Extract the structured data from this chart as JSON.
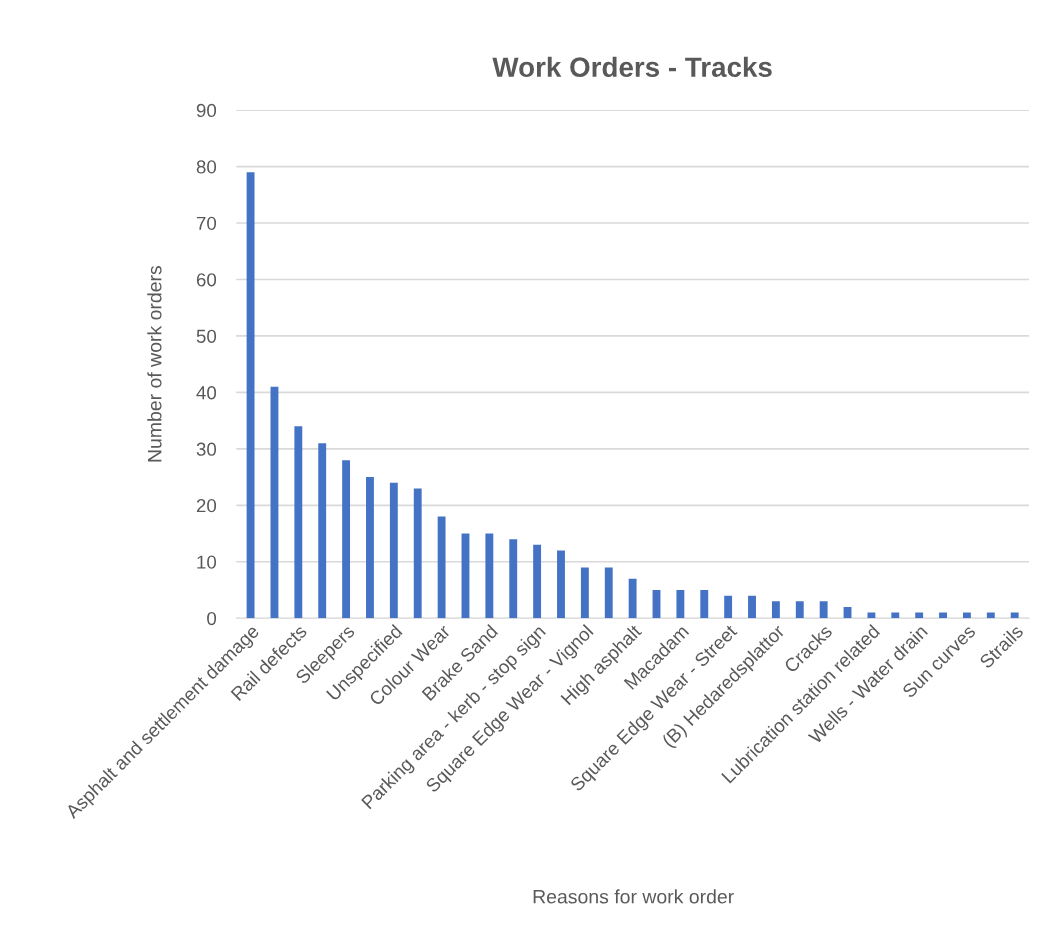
{
  "chart_data": {
    "type": "bar",
    "title": "Work Orders - Tracks",
    "xlabel": "Reasons for work order",
    "ylabel": "Number of work orders",
    "categories": [
      "Asphalt and settlement damage",
      null,
      "Rail defects",
      null,
      "Sleepers",
      null,
      "Unspecified",
      null,
      "Colour Wear",
      null,
      "Brake Sand",
      null,
      "Parking area - kerb - stop sign",
      null,
      "Square Edge Wear - Vignol",
      null,
      "High asphalt",
      null,
      "Macadam",
      null,
      "Square Edge Wear - Street",
      null,
      "(B) Hedaredsplattor",
      null,
      "Cracks",
      null,
      "Lubrication station related",
      null,
      "Wells - Water drain",
      null,
      "Sun curves",
      null,
      "Strails"
    ],
    "values": [
      79,
      41,
      34,
      31,
      28,
      25,
      24,
      23,
      18,
      15,
      15,
      14,
      13,
      12,
      9,
      9,
      7,
      5,
      5,
      5,
      4,
      4,
      3,
      3,
      3,
      2,
      1,
      1,
      1,
      1,
      1,
      1,
      1
    ],
    "color": "#4472c4",
    "ylim": [
      0,
      90
    ],
    "yticks": [
      0,
      10,
      20,
      30,
      40,
      50,
      60,
      70,
      80,
      90
    ],
    "grid": "y",
    "legend": false
  }
}
